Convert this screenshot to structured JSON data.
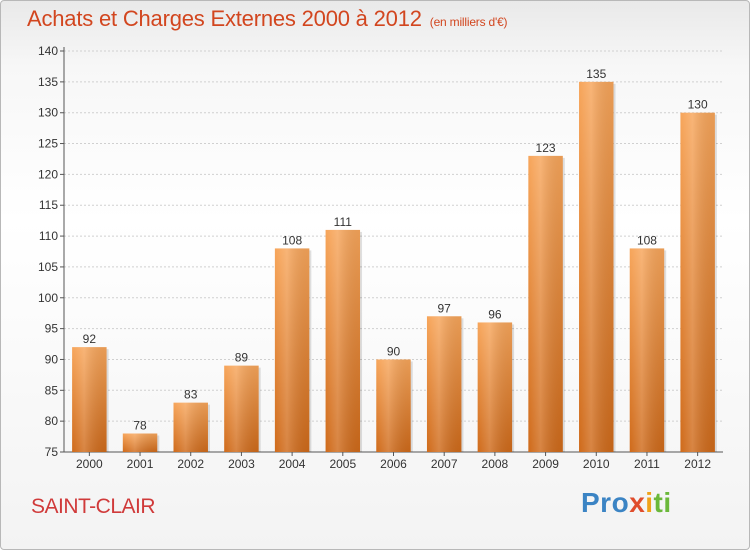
{
  "header": {
    "title": "Achats et Charges Externes 2000 à 2012",
    "unit": "(en milliers d'€)"
  },
  "footer": {
    "commune": "SAINT-CLAIR",
    "brand": {
      "p1": "Pro",
      "p2": "x",
      "p3": "i",
      "p4": "ti"
    }
  },
  "colors": {
    "bar_top": "#f7a55a",
    "bar_bottom": "#cf6a1a",
    "title": "#d2461f"
  },
  "chart_data": {
    "type": "bar",
    "categories": [
      "2000",
      "2001",
      "2002",
      "2003",
      "2004",
      "2005",
      "2006",
      "2007",
      "2008",
      "2009",
      "2010",
      "2011",
      "2012"
    ],
    "values": [
      92,
      78,
      83,
      89,
      108,
      111,
      90,
      97,
      96,
      123,
      135,
      108,
      130
    ],
    "ylim": [
      75,
      140
    ],
    "yticks": [
      75,
      80,
      85,
      90,
      95,
      100,
      105,
      110,
      115,
      120,
      125,
      130,
      135,
      140
    ],
    "grid": true
  }
}
